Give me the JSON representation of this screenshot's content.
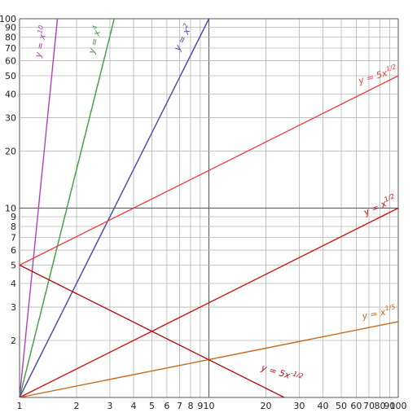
{
  "chart_data": {
    "type": "line",
    "x_scale": "log",
    "y_scale": "log",
    "xlim": [
      1,
      100
    ],
    "ylim": [
      1,
      100
    ],
    "grid": true,
    "x_ticks": [
      1,
      2,
      3,
      4,
      5,
      6,
      7,
      8,
      9,
      10,
      20,
      30,
      40,
      50,
      60,
      70,
      80,
      90,
      100
    ],
    "x_tick_labels": [
      "1",
      "2",
      "3",
      "4",
      "5",
      "6",
      "7",
      "8",
      "9",
      "10",
      "20",
      "30",
      "40",
      "50",
      "60",
      "70",
      "80",
      "90",
      "100"
    ],
    "y_ticks": [
      2,
      3,
      4,
      5,
      6,
      7,
      8,
      9,
      10,
      20,
      30,
      40,
      50,
      60,
      70,
      80,
      90,
      100
    ],
    "y_tick_labels": [
      "2",
      "3",
      "4",
      "5",
      "6",
      "7",
      "8",
      "9",
      "10",
      "20",
      "30",
      "40",
      "50",
      "60",
      "70",
      "80",
      "90",
      "100"
    ],
    "series": [
      {
        "name": "y = x^10",
        "label_base": "y = x",
        "label_exp": "10",
        "color": "#b040c0",
        "coefficient": 1,
        "exponent": 10,
        "points": [
          [
            1,
            1
          ],
          [
            1.585,
            100
          ]
        ]
      },
      {
        "name": "y = x^4",
        "label_base": "y = x",
        "label_exp": "4",
        "color": "#40a040",
        "coefficient": 1,
        "exponent": 4,
        "points": [
          [
            1,
            1
          ],
          [
            3.162,
            100
          ]
        ]
      },
      {
        "name": "y = x^2",
        "label_base": "y = x",
        "label_exp": "2",
        "color": "#4848b0",
        "coefficient": 1,
        "exponent": 2,
        "points": [
          [
            1,
            1
          ],
          [
            10,
            100
          ]
        ]
      },
      {
        "name": "y = 5x^1/2",
        "label_base": "y = 5x",
        "label_exp": "1/2",
        "color": "#f04040",
        "coefficient": 5,
        "exponent": 0.5,
        "points": [
          [
            1,
            5
          ],
          [
            100,
            50
          ]
        ]
      },
      {
        "name": "y = x^1/2",
        "label_base": "y = x",
        "label_exp": "1/2",
        "color": "#cc1010",
        "coefficient": 1,
        "exponent": 0.5,
        "points": [
          [
            1,
            1
          ],
          [
            100,
            10
          ]
        ]
      },
      {
        "name": "y = x^1/5",
        "label_base": "y = x",
        "label_exp": "1/5",
        "color": "#c86818",
        "coefficient": 1,
        "exponent": 0.2,
        "points": [
          [
            1,
            1
          ],
          [
            100,
            2.512
          ]
        ]
      },
      {
        "name": "y = 5x^-1/2",
        "label_base": "y = 5x",
        "label_exp": "-1/2",
        "color": "#b01010",
        "coefficient": 5,
        "exponent": -0.5,
        "points": [
          [
            1,
            5
          ],
          [
            25,
            1
          ]
        ]
      }
    ]
  }
}
